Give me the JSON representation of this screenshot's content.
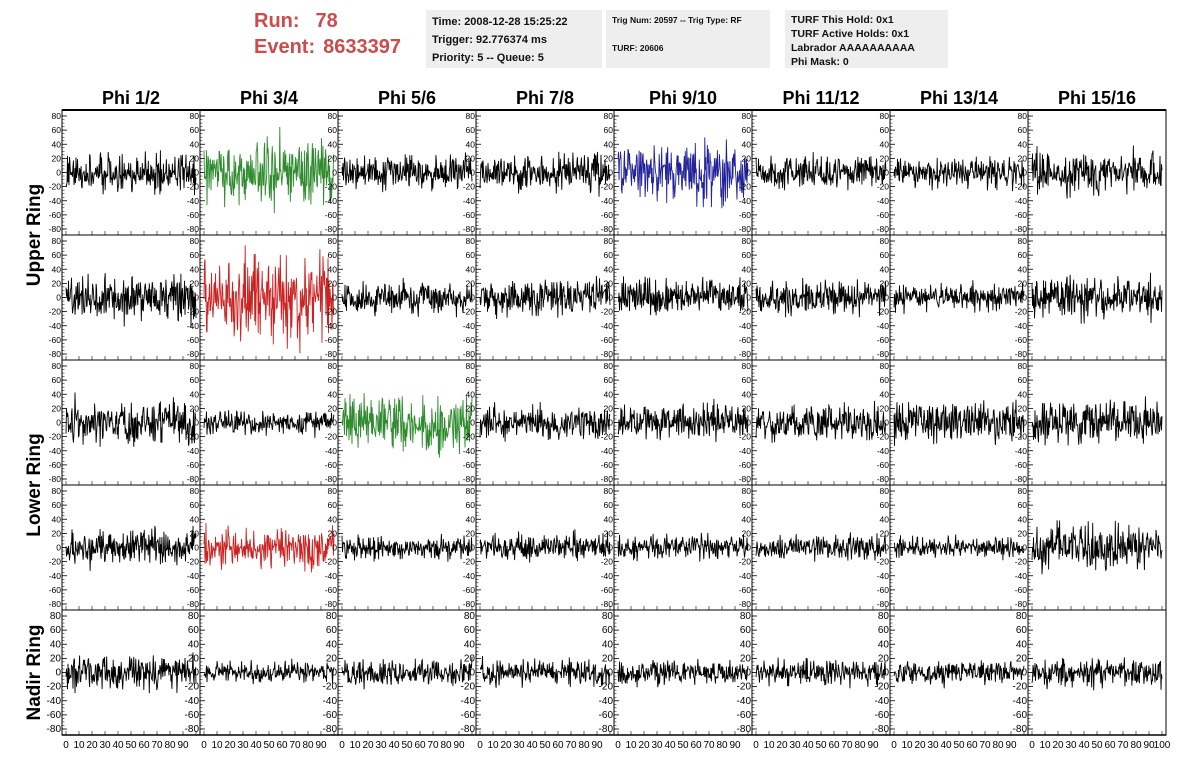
{
  "header": {
    "run_label": "Run:",
    "run_value": "78",
    "event_label": "Event:",
    "event_value": "8633397",
    "time": "Time: 2008-12-28 15:25:22",
    "trigger": "Trigger: 92.776374 ms",
    "priority": "Priority: 5 -- Queue: 5",
    "trig_num": "Trig Num: 20597 -- Trig Type: RF",
    "turf": "TURF: 20606",
    "turf_hold": "TURF This Hold: 0x1",
    "turf_active": "TURF Active Holds: 0x1",
    "labrador": "Labrador AAAAAAAAAA",
    "phi_mask": "Phi Mask: 0"
  },
  "colors": {
    "run_text": "#cc4b4b",
    "info_box_bg": "#eeeeee",
    "trace_default": "#000000",
    "trace_green": "#2e8b2e",
    "trace_red": "#cc2222",
    "trace_blue": "#22229a"
  },
  "chart_data": {
    "type": "line",
    "layout": "grid of 5 rows x 8 columns of waveform panels",
    "column_labels": [
      "Phi 1/2",
      "Phi 3/4",
      "Phi 5/6",
      "Phi 7/8",
      "Phi 9/10",
      "Phi 11/12",
      "Phi 13/14",
      "Phi 15/16"
    ],
    "row_group_labels": [
      "Upper Ring",
      "Lower Ring",
      "Nadir Ring"
    ],
    "xlim": [
      0,
      100
    ],
    "ylim": [
      -80,
      80
    ],
    "xticks": [
      0,
      10,
      20,
      30,
      40,
      50,
      60,
      70,
      80,
      90,
      100
    ],
    "yticks": [
      -80,
      -60,
      -40,
      -20,
      0,
      20,
      40,
      60,
      80
    ],
    "samples_per_trace": 260,
    "trace_amplitudes": [
      [
        13,
        22,
        12,
        12,
        20,
        11,
        11,
        15
      ],
      [
        16,
        30,
        11,
        12,
        12,
        11,
        9,
        15
      ],
      [
        15,
        8,
        20,
        11,
        12,
        12,
        14,
        15
      ],
      [
        12,
        14,
        8,
        9,
        9,
        8,
        7,
        15
      ],
      [
        11,
        7,
        9,
        9,
        8,
        9,
        8,
        10
      ]
    ],
    "trace_colors": [
      [
        "black",
        "green",
        "black",
        "black",
        "blue",
        "black",
        "black",
        "black"
      ],
      [
        "black",
        "red",
        "black",
        "black",
        "black",
        "black",
        "black",
        "black"
      ],
      [
        "black",
        "black",
        "green",
        "black",
        "black",
        "black",
        "black",
        "black"
      ],
      [
        "black",
        "red",
        "black",
        "black",
        "black",
        "black",
        "black",
        "black"
      ],
      [
        "black",
        "black",
        "black",
        "black",
        "black",
        "black",
        "black",
        "black"
      ]
    ]
  }
}
